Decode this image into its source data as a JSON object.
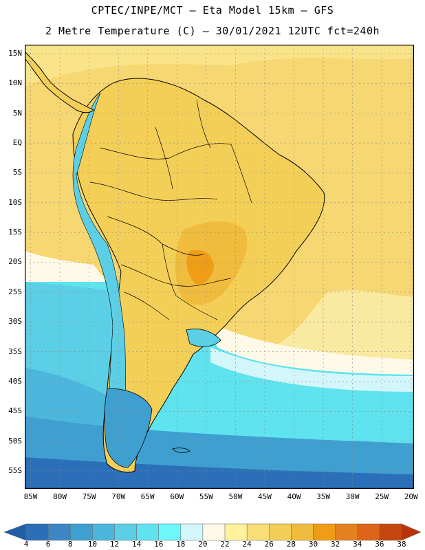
{
  "header": {
    "title_line1": "CPTEC/INPE/MCT –  Eta Model 15km – GFS",
    "title_line2": "2 Metre Temperature (C) – 30/01/2021 12UTC fct=240h"
  },
  "map": {
    "lat_labels": [
      "15N",
      "10N",
      "5N",
      "EQ",
      "5S",
      "10S",
      "15S",
      "20S",
      "25S",
      "30S",
      "35S",
      "40S",
      "45S",
      "50S",
      "55S"
    ],
    "lat_values": [
      15,
      10,
      5,
      0,
      -5,
      -10,
      -15,
      -20,
      -25,
      -30,
      -35,
      -40,
      -45,
      -50,
      -55
    ],
    "lon_labels": [
      "85W",
      "80W",
      "75W",
      "70W",
      "65W",
      "60W",
      "55W",
      "50W",
      "45W",
      "40W",
      "35W",
      "30W",
      "25W",
      "20W"
    ],
    "lon_values": [
      -85,
      -80,
      -75,
      -70,
      -65,
      -60,
      -55,
      -50,
      -45,
      -40,
      -35,
      -30,
      -25,
      -20
    ],
    "lon_range": [
      -86,
      -19.5
    ],
    "lat_range": [
      -58,
      16.5
    ],
    "grid": "dotted"
  },
  "legend": {
    "labels": [
      "4",
      "6",
      "8",
      "10",
      "12",
      "14",
      "16",
      "18",
      "20",
      "22",
      "24",
      "26",
      "28",
      "30",
      "32",
      "34",
      "36",
      "38"
    ],
    "colors": [
      "#1f5fa6",
      "#2b6fb8",
      "#3c86c6",
      "#3f9fd0",
      "#4cb7dc",
      "#5bcfe6",
      "#5ee3ef",
      "#6cf7fb",
      "#d3f6fb",
      "#fffae8",
      "#fff29a",
      "#f9de76",
      "#f4cf58",
      "#efbc3d",
      "#ef9d17",
      "#e6811f",
      "#dc6519",
      "#c4470f",
      "#b83408"
    ]
  }
}
